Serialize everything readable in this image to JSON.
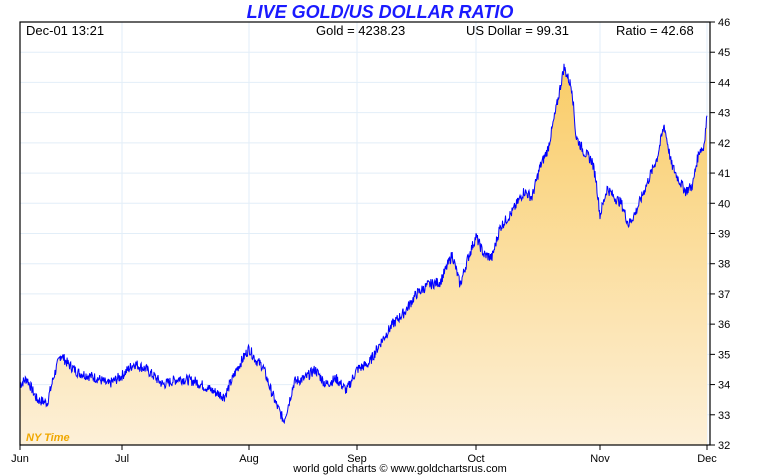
{
  "chart_data": {
    "type": "area",
    "title": "LIVE GOLD/US DOLLAR RATIO",
    "header": {
      "datetime": "Dec-01  13:21",
      "gold": "Gold = 4238.23",
      "usd": "US Dollar = 99.31",
      "ratio": "Ratio = 42.68"
    },
    "x_ticks": [
      "Jun",
      "Jul",
      "Aug",
      "Sep",
      "Oct",
      "Nov",
      "Dec"
    ],
    "y_ticks": [
      "32",
      "33",
      "34",
      "35",
      "36",
      "37",
      "38",
      "39",
      "40",
      "41",
      "42",
      "43",
      "44",
      "45",
      "46"
    ],
    "ylim": [
      32,
      46
    ],
    "grid": true,
    "timezone_label": "NY Time",
    "footer": "world gold charts © www.goldchartsrus.com",
    "colors": {
      "line": "#0000ff",
      "fill_top": "#f9cc66",
      "fill_bottom": "#fdf0d8",
      "title": "#1a1aff"
    },
    "series": [
      {
        "name": "Gold/USD ratio",
        "points": [
          [
            0,
            34.0
          ],
          [
            2,
            34.2
          ],
          [
            5,
            33.5
          ],
          [
            8,
            33.4
          ],
          [
            10,
            34.3
          ],
          [
            12,
            35.0
          ],
          [
            14,
            34.7
          ],
          [
            17,
            34.4
          ],
          [
            20,
            34.3
          ],
          [
            23,
            34.2
          ],
          [
            26,
            34.0
          ],
          [
            30,
            34.3
          ],
          [
            33,
            34.7
          ],
          [
            36,
            34.5
          ],
          [
            40,
            34.0
          ],
          [
            44,
            34.2
          ],
          [
            48,
            34.1
          ],
          [
            52,
            33.8
          ],
          [
            55,
            33.6
          ],
          [
            58,
            34.5
          ],
          [
            61,
            35.2
          ],
          [
            63,
            34.8
          ],
          [
            65,
            34.6
          ],
          [
            67,
            33.9
          ],
          [
            69,
            33.3
          ],
          [
            71,
            32.8
          ],
          [
            72,
            33.2
          ],
          [
            74,
            34.1
          ],
          [
            77,
            34.2
          ],
          [
            80,
            34.5
          ],
          [
            83,
            34.0
          ],
          [
            86,
            34.2
          ],
          [
            89,
            33.8
          ],
          [
            92,
            34.5
          ],
          [
            95,
            34.7
          ],
          [
            98,
            35.4
          ],
          [
            101,
            36.0
          ],
          [
            104,
            36.4
          ],
          [
            107,
            37.0
          ],
          [
            110,
            37.3
          ],
          [
            113,
            37.4
          ],
          [
            116,
            38.3
          ],
          [
            118,
            37.3
          ],
          [
            120,
            38.2
          ],
          [
            122,
            38.9
          ],
          [
            124,
            38.3
          ],
          [
            126,
            38.2
          ],
          [
            128,
            39.2
          ],
          [
            131,
            39.7
          ],
          [
            134,
            40.4
          ],
          [
            136,
            40.2
          ],
          [
            138,
            41.2
          ],
          [
            140,
            41.8
          ],
          [
            142,
            43.1
          ],
          [
            144,
            44.5
          ],
          [
            146,
            43.8
          ],
          [
            147,
            42.2
          ],
          [
            149,
            41.7
          ],
          [
            151,
            41.4
          ],
          [
            152,
            40.8
          ],
          [
            153,
            39.6
          ],
          [
            155,
            40.5
          ],
          [
            157,
            40.2
          ],
          [
            159,
            40.0
          ],
          [
            161,
            39.3
          ],
          [
            163,
            39.7
          ],
          [
            165,
            40.3
          ],
          [
            167,
            40.9
          ],
          [
            169,
            41.5
          ],
          [
            171,
            42.6
          ],
          [
            173,
            41.3
          ],
          [
            175,
            40.8
          ],
          [
            177,
            40.4
          ],
          [
            179,
            40.6
          ],
          [
            180,
            41.3
          ],
          [
            181,
            41.8
          ],
          [
            182,
            41.8
          ],
          [
            183,
            42.9
          ]
        ]
      }
    ]
  }
}
